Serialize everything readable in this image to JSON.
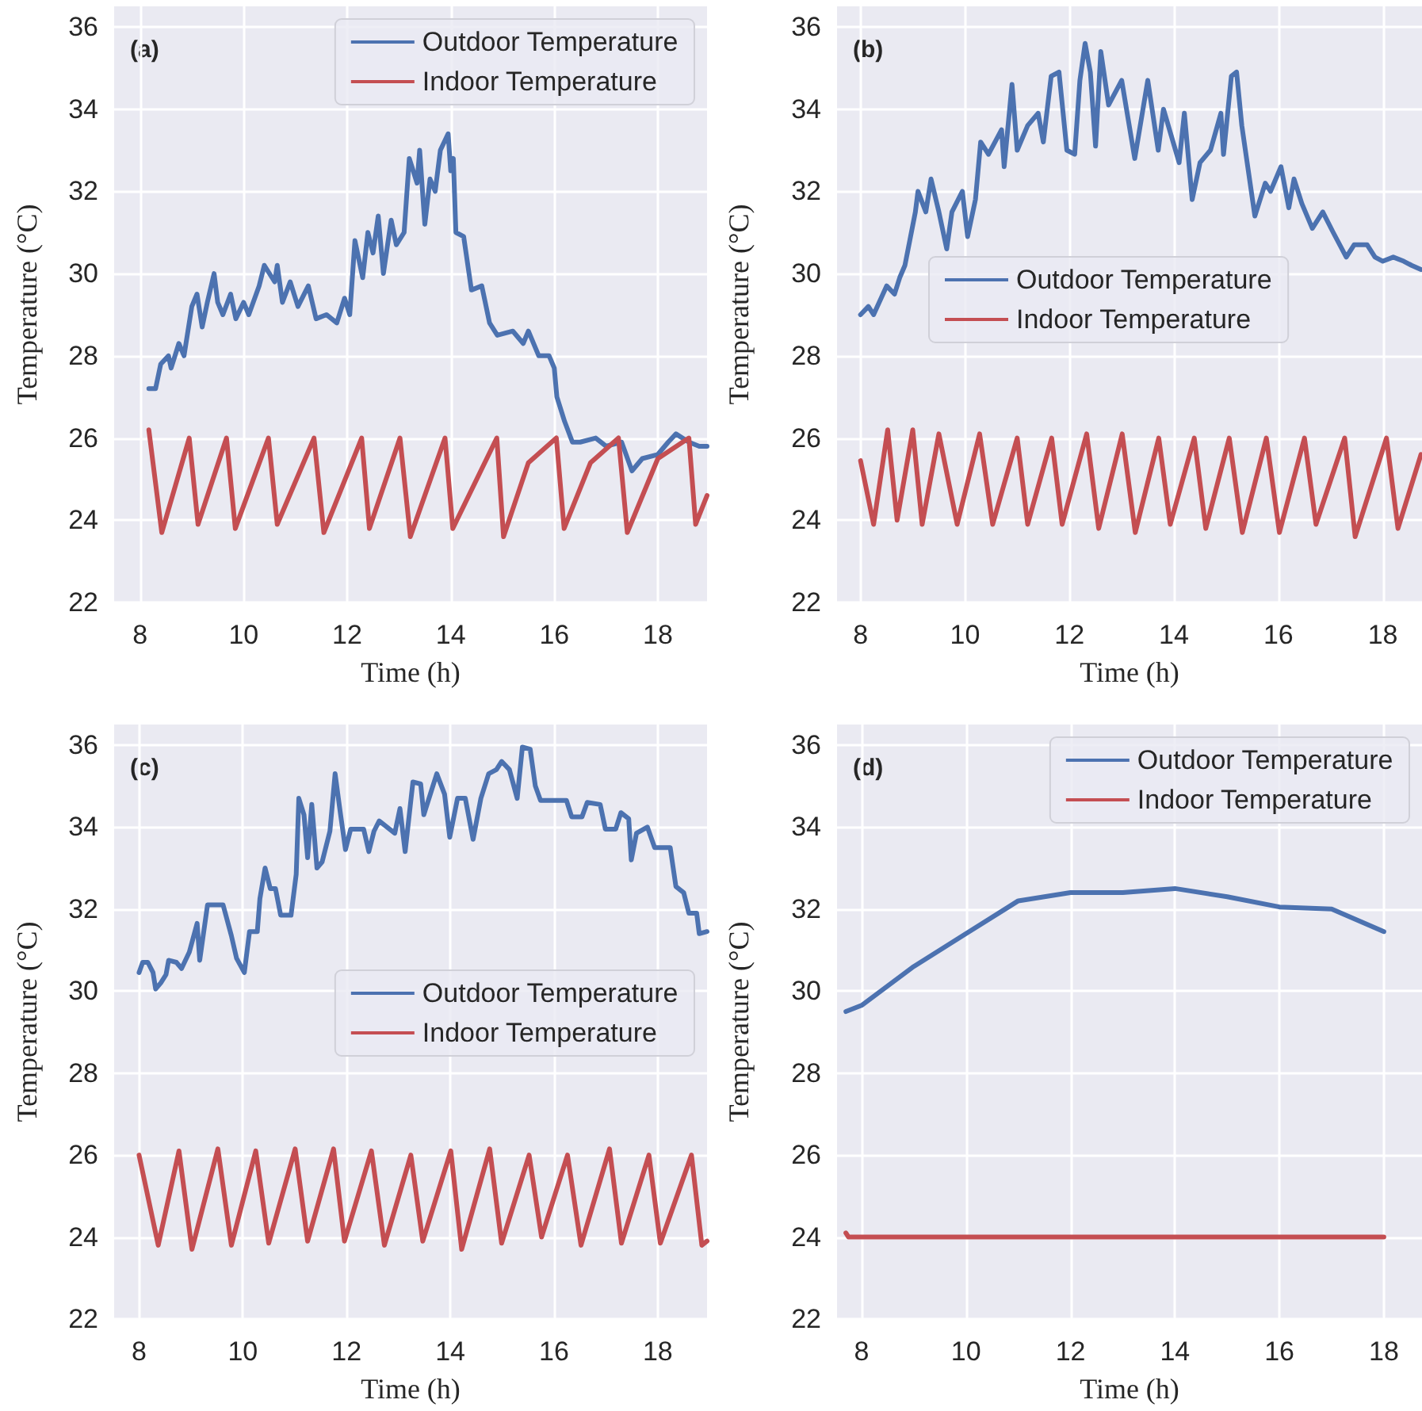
{
  "chart_data": [
    {
      "type": "line",
      "xlabel": "Time (h)",
      "ylabel": "Temperature (°C)",
      "annotations": [
        "(a)"
      ],
      "xlim": [
        7.5,
        18.95
      ],
      "ylim": [
        22,
        36.5
      ],
      "xticks": [
        8,
        10,
        12,
        14,
        16,
        18
      ],
      "yticks": [
        22,
        24,
        26,
        28,
        30,
        32,
        34,
        36
      ],
      "grid": true,
      "legend": "top right",
      "series": [
        {
          "name": "Outdoor Temperature",
          "color": "#4c72b0",
          "x": [
            8.17,
            8.3,
            8.4,
            8.55,
            8.6,
            8.75,
            8.85,
            9.0,
            9.1,
            9.2,
            9.3,
            9.43,
            9.5,
            9.6,
            9.75,
            9.85,
            10.0,
            10.1,
            10.3,
            10.4,
            10.6,
            10.65,
            10.75,
            10.9,
            11.05,
            11.25,
            11.4,
            11.6,
            11.8,
            11.95,
            12.05,
            12.15,
            12.3,
            12.4,
            12.5,
            12.6,
            12.7,
            12.85,
            12.95,
            13.1,
            13.2,
            13.35,
            13.4,
            13.5,
            13.6,
            13.7,
            13.8,
            13.95,
            14.0,
            14.05,
            14.1,
            14.25,
            14.4,
            14.6,
            14.75,
            14.9,
            15.2,
            15.4,
            15.5,
            15.7,
            15.9,
            16.0,
            16.05,
            16.2,
            16.35,
            16.5,
            16.8,
            17.0,
            17.3,
            17.5,
            17.7,
            18.0,
            18.2,
            18.35,
            18.6,
            18.8,
            18.95
          ],
          "values": [
            27.2,
            27.2,
            27.8,
            28.0,
            27.7,
            28.3,
            28.0,
            29.2,
            29.5,
            28.7,
            29.3,
            30.0,
            29.3,
            29.0,
            29.5,
            28.9,
            29.3,
            29.0,
            29.7,
            30.2,
            29.8,
            30.2,
            29.3,
            29.8,
            29.2,
            29.7,
            28.9,
            29.0,
            28.8,
            29.4,
            29.0,
            30.8,
            29.9,
            31.0,
            30.5,
            31.4,
            30.0,
            31.3,
            30.7,
            31.0,
            32.8,
            32.2,
            33.0,
            31.2,
            32.3,
            32.0,
            33.0,
            33.4,
            32.5,
            32.8,
            31.0,
            30.9,
            29.6,
            29.7,
            28.8,
            28.5,
            28.6,
            28.3,
            28.6,
            28.0,
            28.0,
            27.7,
            27.0,
            26.4,
            25.9,
            25.9,
            26.0,
            25.8,
            25.9,
            25.2,
            25.5,
            25.6,
            25.9,
            26.1,
            25.9,
            25.8,
            25.8
          ]
        },
        {
          "name": "Indoor Temperature",
          "color": "#c44e52",
          "x": [
            8.17,
            8.42,
            8.95,
            9.12,
            9.67,
            9.84,
            10.48,
            10.65,
            11.36,
            11.55,
            12.28,
            12.43,
            13.02,
            13.22,
            13.89,
            14.04,
            14.89,
            15.02,
            15.5,
            16.04,
            16.19,
            16.7,
            17.24,
            17.41,
            18.0,
            18.6,
            18.73,
            18.95
          ],
          "values": [
            26.2,
            23.7,
            26.0,
            23.9,
            26.0,
            23.8,
            26.0,
            23.9,
            26.0,
            23.7,
            26.0,
            23.8,
            26.0,
            23.6,
            26.0,
            23.8,
            26.0,
            23.6,
            25.4,
            26.0,
            23.8,
            25.4,
            26.0,
            23.7,
            25.5,
            26.0,
            23.9,
            24.6
          ]
        }
      ]
    },
    {
      "type": "line",
      "xlabel": "Time (h)",
      "ylabel": "Temperature (°C)",
      "annotations": [
        "(b)"
      ],
      "xlim": [
        7.55,
        18.75
      ],
      "ylim": [
        22,
        36.5
      ],
      "xticks": [
        8,
        10,
        12,
        14,
        16,
        18
      ],
      "yticks": [
        22,
        24,
        26,
        28,
        30,
        32,
        34,
        36
      ],
      "grid": true,
      "legend": "center",
      "series": [
        {
          "name": "Outdoor Temperature",
          "color": "#4c72b0",
          "x": [
            8.0,
            8.15,
            8.25,
            8.5,
            8.65,
            8.75,
            8.85,
            9.05,
            9.1,
            9.25,
            9.35,
            9.5,
            9.65,
            9.75,
            9.95,
            10.05,
            10.2,
            10.3,
            10.45,
            10.7,
            10.75,
            10.9,
            11.0,
            11.2,
            11.4,
            11.5,
            11.65,
            11.8,
            11.95,
            12.1,
            12.2,
            12.3,
            12.4,
            12.5,
            12.6,
            12.75,
            13.0,
            13.25,
            13.5,
            13.7,
            13.8,
            14.1,
            14.2,
            14.35,
            14.5,
            14.7,
            14.9,
            14.95,
            15.1,
            15.2,
            15.3,
            15.55,
            15.75,
            15.85,
            16.05,
            16.2,
            16.3,
            16.45,
            16.65,
            16.85,
            17.05,
            17.3,
            17.45,
            17.7,
            17.85,
            18.0,
            18.2,
            18.4,
            18.55,
            18.73
          ],
          "values": [
            29.0,
            29.2,
            29.0,
            29.7,
            29.5,
            29.9,
            30.2,
            31.5,
            32.0,
            31.5,
            32.3,
            31.5,
            30.6,
            31.5,
            32.0,
            30.9,
            31.8,
            33.2,
            32.9,
            33.5,
            32.6,
            34.6,
            33.0,
            33.6,
            33.9,
            33.2,
            34.8,
            34.9,
            33.0,
            32.9,
            34.7,
            35.6,
            34.9,
            33.1,
            35.4,
            34.1,
            34.7,
            32.8,
            34.7,
            33.0,
            34.0,
            32.7,
            33.9,
            31.8,
            32.7,
            33.0,
            33.9,
            32.9,
            34.8,
            34.9,
            33.6,
            31.4,
            32.2,
            32.0,
            32.6,
            31.6,
            32.3,
            31.7,
            31.1,
            31.5,
            31.0,
            30.4,
            30.7,
            30.7,
            30.4,
            30.3,
            30.4,
            30.3,
            30.2,
            30.1
          ]
        },
        {
          "name": "Indoor Temperature",
          "color": "#c44e52",
          "x": [
            8.0,
            8.25,
            8.52,
            8.7,
            9.0,
            9.18,
            9.5,
            9.85,
            10.28,
            10.53,
            11.0,
            11.2,
            11.66,
            11.86,
            12.33,
            12.56,
            13.01,
            13.26,
            13.71,
            13.93,
            14.39,
            14.61,
            15.06,
            15.31,
            15.77,
            16.02,
            16.5,
            16.72,
            17.27,
            17.47,
            18.07,
            18.29,
            18.73
          ],
          "values": [
            25.45,
            23.9,
            26.2,
            24.0,
            26.2,
            23.9,
            26.1,
            23.9,
            26.1,
            23.9,
            26.0,
            23.9,
            26.0,
            23.9,
            26.1,
            23.8,
            26.1,
            23.7,
            26.0,
            23.9,
            26.0,
            23.8,
            26.0,
            23.7,
            26.0,
            23.7,
            26.0,
            23.9,
            26.0,
            23.6,
            26.0,
            23.8,
            25.6
          ]
        }
      ]
    },
    {
      "type": "line",
      "xlabel": "Time (h)",
      "ylabel": "Temperature (°C)",
      "annotations": [
        "(c)"
      ],
      "xlim": [
        7.52,
        18.95
      ],
      "ylim": [
        22,
        36.5
      ],
      "xticks": [
        8,
        10,
        12,
        14,
        16,
        18
      ],
      "yticks": [
        22,
        24,
        26,
        28,
        30,
        32,
        34,
        36
      ],
      "grid": true,
      "legend": "center right",
      "series": [
        {
          "name": "Outdoor Temperature",
          "color": "#4c72b0",
          "x": [
            8.0,
            8.07,
            8.17,
            8.27,
            8.32,
            8.42,
            8.52,
            8.57,
            8.72,
            8.82,
            8.97,
            9.12,
            9.17,
            9.32,
            9.47,
            9.62,
            9.78,
            9.88,
            10.03,
            10.13,
            10.28,
            10.33,
            10.43,
            10.53,
            10.63,
            10.73,
            10.93,
            11.03,
            11.08,
            11.18,
            11.25,
            11.33,
            11.43,
            11.53,
            11.68,
            11.78,
            11.88,
            11.98,
            12.08,
            12.33,
            12.43,
            12.53,
            12.63,
            12.93,
            13.03,
            13.13,
            13.28,
            13.43,
            13.49,
            13.64,
            13.74,
            13.89,
            13.99,
            14.14,
            14.29,
            14.44,
            14.59,
            14.74,
            14.89,
            14.99,
            15.14,
            15.29,
            15.39,
            15.54,
            15.64,
            15.74,
            16.24,
            16.34,
            16.54,
            16.64,
            16.89,
            16.99,
            17.19,
            17.29,
            17.44,
            17.49,
            17.59,
            17.8,
            17.94,
            18.24,
            18.35,
            18.5,
            18.6,
            18.75,
            18.8,
            18.95
          ],
          "values": [
            30.45,
            30.7,
            30.7,
            30.45,
            30.05,
            30.2,
            30.4,
            30.75,
            30.7,
            30.55,
            30.95,
            31.65,
            30.75,
            32.1,
            32.1,
            32.1,
            31.35,
            30.8,
            30.45,
            31.45,
            31.45,
            32.25,
            33.0,
            32.5,
            32.5,
            31.85,
            31.85,
            32.85,
            34.7,
            34.3,
            33.25,
            34.55,
            33.0,
            33.15,
            33.9,
            35.3,
            34.35,
            33.45,
            33.95,
            33.95,
            33.4,
            33.9,
            34.15,
            33.85,
            34.45,
            33.4,
            35.1,
            35.05,
            34.3,
            34.9,
            35.3,
            34.8,
            33.75,
            34.7,
            34.7,
            33.7,
            34.7,
            35.3,
            35.4,
            35.6,
            35.4,
            34.7,
            35.95,
            35.9,
            35.0,
            34.65,
            34.65,
            34.25,
            34.25,
            34.6,
            34.55,
            33.95,
            33.95,
            34.35,
            34.2,
            33.2,
            33.85,
            34.0,
            33.5,
            33.5,
            32.55,
            32.4,
            31.9,
            31.9,
            31.4,
            31.45
          ]
        },
        {
          "name": "Indoor Temperature",
          "color": "#c44e52",
          "x": [
            8.0,
            8.37,
            8.77,
            9.02,
            9.52,
            9.78,
            10.25,
            10.5,
            11.01,
            11.25,
            11.75,
            11.96,
            12.48,
            12.73,
            13.24,
            13.47,
            14.01,
            14.22,
            14.76,
            14.99,
            15.52,
            15.76,
            16.26,
            16.52,
            17.07,
            17.3,
            17.83,
            18.05,
            18.65,
            18.85,
            18.95
          ],
          "values": [
            26.0,
            23.8,
            26.1,
            23.7,
            26.15,
            23.8,
            26.1,
            23.85,
            26.15,
            23.9,
            26.15,
            23.9,
            26.1,
            23.8,
            26.0,
            23.9,
            26.1,
            23.7,
            26.15,
            23.85,
            26.0,
            24.0,
            26.0,
            23.8,
            26.15,
            23.85,
            26.0,
            23.85,
            26.0,
            23.8,
            23.9
          ]
        }
      ]
    },
    {
      "type": "line",
      "xlabel": "Time (h)",
      "ylabel": "Temperature (°C)",
      "annotations": [
        "(d)"
      ],
      "xlim": [
        7.53,
        18.73
      ],
      "ylim": [
        22,
        36.5
      ],
      "xticks": [
        8,
        10,
        12,
        14,
        16,
        18
      ],
      "yticks": [
        22,
        24,
        26,
        28,
        30,
        32,
        34,
        36
      ],
      "grid": true,
      "legend": "top right",
      "series": [
        {
          "name": "Outdoor Temperature",
          "color": "#4c72b0",
          "x": [
            7.7,
            8.0,
            9.0,
            10.0,
            11.0,
            12.0,
            13.0,
            14.0,
            15.0,
            16.0,
            17.0,
            18.0
          ],
          "values": [
            29.5,
            29.65,
            30.6,
            31.4,
            32.2,
            32.4,
            32.4,
            32.5,
            32.3,
            32.05,
            32.0,
            31.45
          ]
        },
        {
          "name": "Indoor Temperature",
          "color": "#c44e52",
          "x": [
            7.7,
            7.75,
            18.0
          ],
          "values": [
            24.1,
            24.0,
            24.0
          ]
        }
      ]
    }
  ]
}
